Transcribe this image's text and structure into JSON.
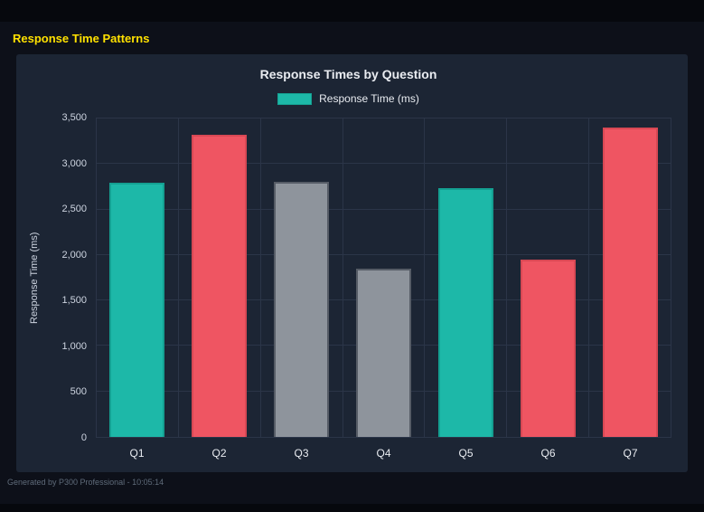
{
  "page": {
    "header_title": "Response Time Patterns",
    "footer": "Generated by P300 Professional - 10:05:14"
  },
  "chart_data": {
    "type": "bar",
    "title": "Response Times by Question",
    "categories": [
      "Q1",
      "Q2",
      "Q3",
      "Q4",
      "Q5",
      "Q6",
      "Q7"
    ],
    "series": [
      {
        "name": "Response Time (ms)",
        "values": [
          2790,
          3320,
          2800,
          1850,
          2730,
          1950,
          3400
        ]
      }
    ],
    "bar_colors": [
      "#1db8a8",
      "#ef5562",
      "#8e949c",
      "#8e949c",
      "#1db8a8",
      "#ef5562",
      "#ef5562"
    ],
    "bar_border_colors": [
      "#14a092",
      "#d84854",
      "#565c66",
      "#565c66",
      "#14a092",
      "#d84854",
      "#d84854"
    ],
    "xlabel": "",
    "ylabel": "Response Time (ms)",
    "ylim": [
      0,
      3500
    ],
    "ytick_step": 500,
    "yticks": [
      "0",
      "500",
      "1,000",
      "1,500",
      "2,000",
      "2,500",
      "3,000",
      "3,500"
    ],
    "grid": true,
    "legend_position": "top",
    "legend": [
      {
        "label": "Response Time (ms)",
        "color": "#1db8a8"
      }
    ]
  },
  "colors": {
    "page_bg": "#0d1019",
    "bar_bg": "#06080d",
    "panel_bg": "#1c2534",
    "accent_yellow": "#ffe100",
    "grid": "#2b3548",
    "text": "#e9ecf1",
    "muted_light": "#cdd4e0",
    "muted": "#5f6b7a",
    "teal": "#1db8a8",
    "teal_border": "#14a092"
  }
}
